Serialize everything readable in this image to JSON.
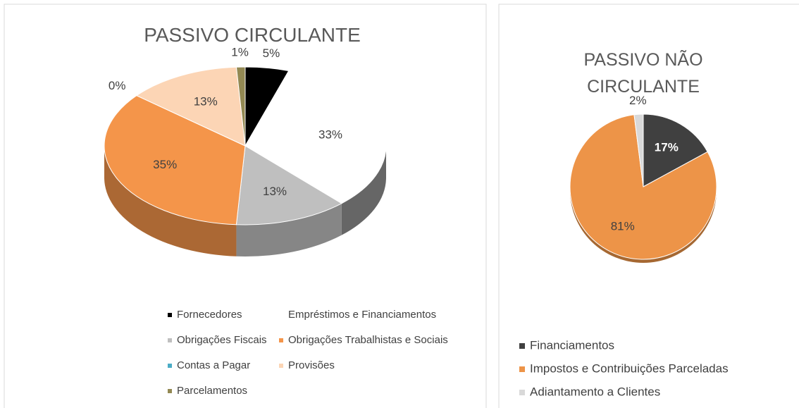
{
  "chart_data": [
    {
      "type": "pie",
      "title": "PASSIVO CIRCULANTE",
      "categories": [
        "Fornecedores",
        "Empréstimos e Financiamentos",
        "Obrigações Fiscais",
        "Obrigações Trabalhistas e Sociais",
        "Contas a Pagar",
        "Provisões",
        "Parcelamentos"
      ],
      "values": [
        5,
        33,
        13,
        35,
        0,
        13,
        1
      ],
      "value_labels": [
        "5%",
        "33%",
        "13%",
        "35%",
        "0%",
        "13%",
        "1%"
      ],
      "colors": [
        "#000000",
        "#ffffff",
        "#bfbfbf",
        "#f4954a",
        "#4bacc6",
        "#fcd5b5",
        "#938953"
      ]
    },
    {
      "type": "pie",
      "title": "PASSIVO NÃO CIRCULANTE",
      "categories": [
        "Financiamentos",
        "Impostos e Contribuições Parceladas",
        "Adiantamento a Clientes"
      ],
      "values": [
        17,
        81,
        2
      ],
      "value_labels": [
        "17%",
        "81%",
        "2%"
      ],
      "colors": [
        "#404040",
        "#ed9448",
        "#d9d9d9"
      ]
    }
  ]
}
